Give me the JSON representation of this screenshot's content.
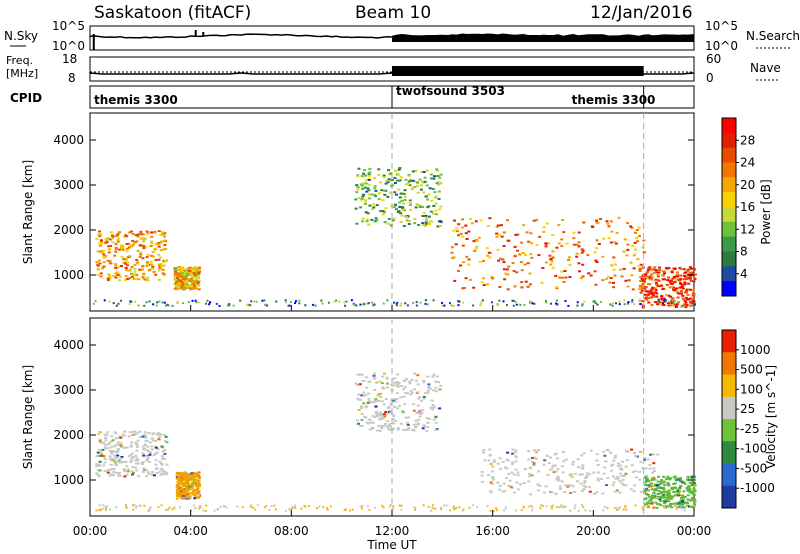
{
  "header": {
    "station": "Saskatoon (fitACF)",
    "beam": "Beam 10",
    "date": "12/Jan/2016"
  },
  "noise_panel": {
    "left_label": "N.Sky",
    "left_ticks": [
      "10^5",
      "10^0"
    ],
    "right_label": "N.Search",
    "right_ticks": [
      "10^5",
      "10^0"
    ]
  },
  "freq_panel": {
    "left_label_top": "Freq.",
    "left_label_bottom": "[MHz]",
    "left_ticks": [
      "18",
      "8"
    ],
    "right_label": "Nave",
    "right_ticks": [
      "60",
      "0"
    ]
  },
  "cpid_panel": {
    "label": "CPID",
    "segments": [
      {
        "name": "themis 3300",
        "start_hour": 0.0,
        "end_hour": 12.0
      },
      {
        "name": "twofsound 3503",
        "start_hour": 12.0,
        "end_hour": 22.0
      },
      {
        "name": "themis 3300",
        "start_hour": 22.0,
        "end_hour": 24.0
      }
    ]
  },
  "x_axis": {
    "label": "Time UT",
    "ticks": [
      "00:00",
      "04:00",
      "08:00",
      "12:00",
      "16:00",
      "20:00",
      "00:00"
    ]
  },
  "chart_data": [
    {
      "type": "heatmap",
      "name": "power",
      "ylabel": "Slant Range [km]",
      "ylim": [
        200,
        4600
      ],
      "y_ticks": [
        "4000",
        "3000",
        "2000",
        "1000"
      ],
      "xlim_hours": [
        0,
        24
      ],
      "colorbar": {
        "label": "Power [dB]",
        "ticks": [
          "28",
          "24",
          "20",
          "16",
          "12",
          "8",
          "4"
        ],
        "range": [
          0,
          30
        ],
        "colors": [
          "#0000ff",
          "#1d4aa5",
          "#2c7a3d",
          "#3a9a4a",
          "#6ec23a",
          "#c8d83a",
          "#f5d200",
          "#f5a800",
          "#f07800",
          "#e84a00",
          "#e21e00",
          "#ff0000"
        ]
      },
      "regions": [
        {
          "t0": 0.2,
          "t1": 3.0,
          "r0": 900,
          "r1": 2000,
          "level": 20
        },
        {
          "t0": 3.3,
          "t1": 4.3,
          "r0": 700,
          "r1": 1200,
          "level": 18
        },
        {
          "t0": 10.5,
          "t1": 13.9,
          "r0": 2100,
          "r1": 3400,
          "level": 10
        },
        {
          "t0": 14.3,
          "t1": 22.0,
          "r0": 700,
          "r1": 2300,
          "level": 22
        },
        {
          "t0": 21.8,
          "t1": 24.0,
          "r0": 300,
          "r1": 1200,
          "level": 27
        }
      ],
      "vertical_markers_hours": [
        12.0,
        22.0
      ]
    },
    {
      "type": "heatmap",
      "name": "velocity",
      "ylabel": "Slant Range [km]",
      "ylim": [
        200,
        4600
      ],
      "y_ticks": [
        "4000",
        "3000",
        "2000",
        "1000"
      ],
      "xlim_hours": [
        0,
        24
      ],
      "colorbar": {
        "label": "Velocity [m s^-1]",
        "ticks": [
          "1000",
          "500",
          "100",
          "25",
          "-25",
          "-100",
          "-500",
          "-1000"
        ],
        "colors": [
          "#1f3aa0",
          "#2a6ad0",
          "#2e8a3c",
          "#6ec23a",
          "#c8c8c4",
          "#f5b800",
          "#f07800",
          "#e82000"
        ]
      },
      "regions": [
        {
          "t0": 0.2,
          "t1": 3.0,
          "r0": 1100,
          "r1": 2100,
          "level": "grey"
        },
        {
          "t0": 3.4,
          "t1": 4.3,
          "r0": 600,
          "r1": 1200,
          "level": "orange"
        },
        {
          "t0": 10.5,
          "t1": 13.9,
          "r0": 2100,
          "r1": 3400,
          "level": "grey"
        },
        {
          "t0": 15.5,
          "t1": 22.5,
          "r0": 700,
          "r1": 1700,
          "level": "grey"
        },
        {
          "t0": 22.0,
          "t1": 24.0,
          "r0": 400,
          "r1": 1100,
          "level": "green"
        }
      ],
      "vertical_markers_hours": [
        12.0,
        22.0
      ]
    }
  ]
}
